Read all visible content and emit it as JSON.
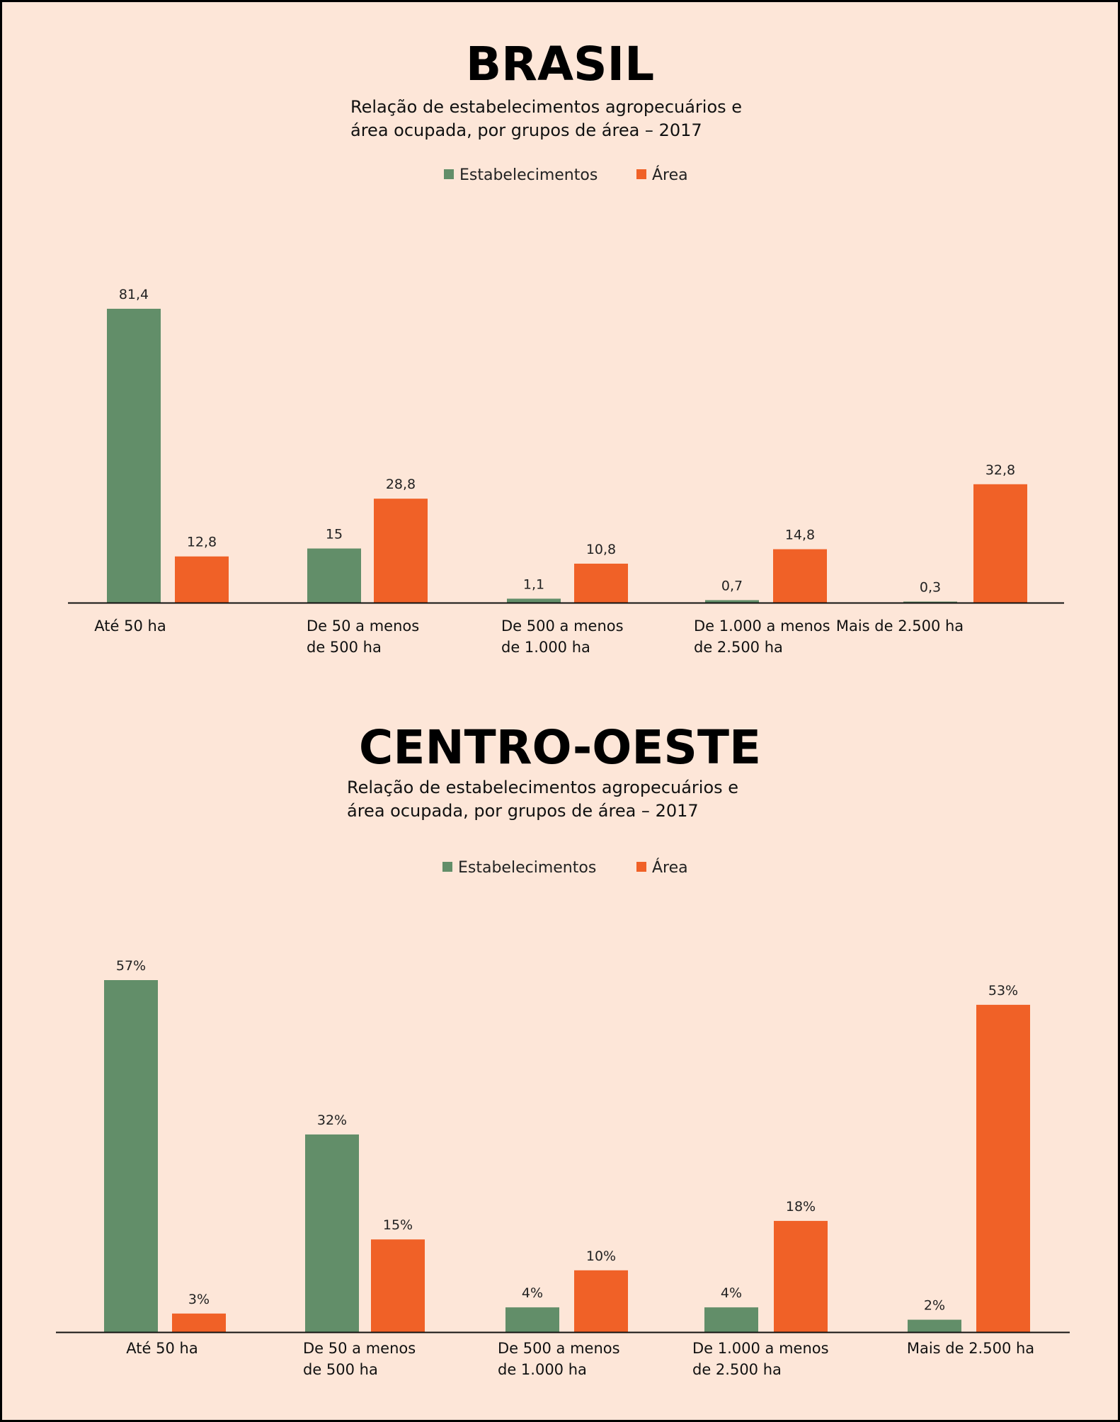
{
  "colors": {
    "background": "#fde6d8",
    "estabelecimentos": "#628e69",
    "area": "#f06127",
    "axis": "#111111"
  },
  "chart_data": [
    {
      "type": "bar",
      "title": "BRASIL",
      "subtitle_line1": "Relação de estabelecimentos agropecuários e",
      "subtitle_line2": "área ocupada, por grupos de área – 2017",
      "legend_placement": "top-center",
      "grid": false,
      "ylim": [
        0,
        81.4
      ],
      "categories": [
        [
          "Até 50 ha"
        ],
        [
          "De 50 a menos",
          "de 500 ha"
        ],
        [
          "De 500 a menos",
          "de 1.000 ha"
        ],
        [
          "De 1.000 a menos",
          "de 2.500 ha"
        ],
        [
          "Mais de 2.500 ha"
        ]
      ],
      "series": [
        {
          "name": "Estabelecimentos",
          "values": [
            81.4,
            15,
            1.1,
            0.7,
            0.3
          ],
          "labels": [
            "81,4",
            "15",
            "1,1",
            "0,7",
            "0,3"
          ]
        },
        {
          "name": "Área",
          "values": [
            12.8,
            28.8,
            10.8,
            14.8,
            32.8
          ],
          "labels": [
            "12,8",
            "28,8",
            "10,8",
            "14,8",
            "32,8"
          ]
        }
      ]
    },
    {
      "type": "bar",
      "title": "CENTRO-OESTE",
      "subtitle_line1": "Relação de estabelecimentos agropecuários e",
      "subtitle_line2": "área ocupada, por grupos de área – 2017",
      "legend_placement": "top-center",
      "grid": false,
      "ylim": [
        0,
        57
      ],
      "categories": [
        [
          "Até 50 ha"
        ],
        [
          "De 50 a menos",
          "de 500 ha"
        ],
        [
          "De 500 a menos",
          "de 1.000 ha"
        ],
        [
          "De 1.000 a menos",
          "de 2.500 ha"
        ],
        [
          "Mais de 2.500 ha"
        ]
      ],
      "series": [
        {
          "name": "Estabelecimentos",
          "values": [
            57,
            32,
            4,
            4,
            2
          ],
          "labels": [
            "57%",
            "32%",
            "4%",
            "4%",
            "2%"
          ]
        },
        {
          "name": "Área",
          "values": [
            3,
            15,
            10,
            18,
            53
          ],
          "labels": [
            "3%",
            "15%",
            "10%",
            "18%",
            "53%"
          ]
        }
      ]
    }
  ]
}
